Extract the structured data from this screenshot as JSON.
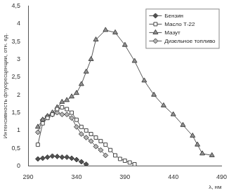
{
  "chart_data": {
    "type": "line",
    "x_label": "λ, нм",
    "y_label": "Интенсивность флуоресценции, отн. ед.",
    "xlim": [
      290,
      490
    ],
    "xticks": [
      290,
      340,
      390,
      440,
      490
    ],
    "ylim": [
      0,
      4.5
    ],
    "yticks": [
      0,
      {
        "value": 0.5,
        "label": "0,5"
      },
      1,
      {
        "value": 1.5,
        "label": "1,5"
      },
      2,
      {
        "value": 2.5,
        "label": "2,5"
      },
      3,
      {
        "value": 3.5,
        "label": "3,5"
      },
      4,
      {
        "value": 4.5,
        "label": "4,5"
      }
    ],
    "grid": false,
    "legend": "upper right",
    "series": [
      {
        "name": "Бензин",
        "color": "#505050",
        "marker": "diamond",
        "x": [
          300,
          305,
          310,
          315,
          320,
          325,
          330,
          335,
          340,
          345,
          350
        ],
        "values": [
          0.2,
          0.22,
          0.25,
          0.28,
          0.27,
          0.25,
          0.25,
          0.22,
          0.18,
          0.12,
          0.05
        ]
      },
      {
        "name": "Масло Т-22",
        "color": "#ffffff",
        "marker": "square",
        "x": [
          300,
          305,
          310,
          315,
          320,
          325,
          330,
          335,
          340,
          345,
          350,
          355,
          360,
          365,
          370,
          375,
          380,
          385,
          390,
          395,
          400
        ],
        "values": [
          0.6,
          1.2,
          1.35,
          1.45,
          1.6,
          1.65,
          1.6,
          1.5,
          1.3,
          1.1,
          1.0,
          0.9,
          0.8,
          0.7,
          0.6,
          0.45,
          0.3,
          0.2,
          0.15,
          0.1,
          0.05
        ]
      },
      {
        "name": "Мазут",
        "color": "#909090",
        "marker": "triangle",
        "x": [
          300,
          305,
          310,
          315,
          320,
          325,
          330,
          335,
          340,
          345,
          350,
          355,
          360,
          370,
          380,
          390,
          400,
          410,
          420,
          430,
          440,
          450,
          460,
          465,
          470,
          480
        ],
        "values": [
          1.1,
          1.3,
          1.4,
          1.5,
          1.65,
          1.8,
          1.85,
          1.95,
          2.05,
          2.3,
          2.65,
          3.0,
          3.55,
          3.82,
          3.75,
          3.4,
          2.95,
          2.4,
          2.0,
          1.7,
          1.45,
          1.15,
          0.85,
          0.6,
          0.35,
          0.3
        ]
      },
      {
        "name": "Дизельное топливо",
        "color": "#b4b4b4",
        "marker": "diamond",
        "x": [
          300,
          305,
          310,
          315,
          320,
          325,
          330,
          335,
          340,
          345,
          350,
          355,
          360,
          365,
          370
        ],
        "values": [
          0.95,
          1.3,
          1.4,
          1.45,
          1.5,
          1.45,
          1.45,
          1.35,
          1.1,
          0.9,
          0.8,
          0.7,
          0.55,
          0.45,
          0.3
        ]
      }
    ]
  }
}
